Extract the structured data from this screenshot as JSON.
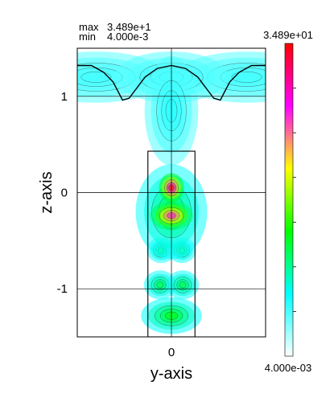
{
  "chart_data": {
    "type": "heatmap",
    "title": "",
    "stats": {
      "max_label": "max",
      "max_value": "3.489e+1",
      "min_label": "min",
      "min_value": "4.000e-3"
    },
    "xlabel": "y-axis",
    "ylabel": "z-axis",
    "xlim": [
      -1.0,
      1.0
    ],
    "ylim": [
      -1.5,
      1.5
    ],
    "x_ticks": [
      {
        "value": 0,
        "label": "0"
      }
    ],
    "y_ticks": [
      {
        "value": 1,
        "label": "1"
      },
      {
        "value": 0,
        "label": "0"
      },
      {
        "value": -1,
        "label": "-1"
      }
    ],
    "grid": true,
    "colorbar": {
      "max_label": "3.489e+01",
      "min_label": "4.000e-03",
      "min": 0.004,
      "max": 34.89,
      "colors": [
        "#ffffff",
        "#00ffff",
        "#00ff00",
        "#ffff00",
        "#ff00ff",
        "#ff0000"
      ]
    },
    "structure": {
      "pillar_y": [
        -0.25,
        0.25
      ],
      "pillar_z": [
        -1.5,
        0.43
      ]
    },
    "surface_profile": [
      [
        -1.0,
        1.32
      ],
      [
        -0.85,
        1.32
      ],
      [
        -0.72,
        1.25
      ],
      [
        -0.62,
        1.15
      ],
      [
        -0.55,
        1.02
      ],
      [
        -0.52,
        0.96
      ],
      [
        -0.45,
        0.98
      ],
      [
        -0.38,
        1.07
      ],
      [
        -0.28,
        1.2
      ],
      [
        -0.15,
        1.29
      ],
      [
        0.0,
        1.32
      ],
      [
        0.15,
        1.29
      ],
      [
        0.28,
        1.2
      ],
      [
        0.38,
        1.07
      ],
      [
        0.45,
        0.98
      ],
      [
        0.52,
        0.96
      ],
      [
        0.55,
        1.02
      ],
      [
        0.62,
        1.15
      ],
      [
        0.72,
        1.25
      ],
      [
        0.85,
        1.32
      ],
      [
        1.0,
        1.32
      ]
    ],
    "hotspots": [
      {
        "y": 0.0,
        "z": 0.05,
        "sy": 0.07,
        "sz": 0.08,
        "value": 34.89
      },
      {
        "y": 0.0,
        "z": -0.24,
        "sy": 0.12,
        "sz": 0.08,
        "value": 28
      },
      {
        "y": 0.0,
        "z": -0.2,
        "sy": 0.2,
        "sz": 0.26,
        "value": 9
      },
      {
        "y": -0.11,
        "z": -0.6,
        "sy": 0.08,
        "sz": 0.07,
        "value": 8
      },
      {
        "y": 0.11,
        "z": -0.6,
        "sy": 0.08,
        "sz": 0.07,
        "value": 8
      },
      {
        "y": -0.12,
        "z": -0.96,
        "sy": 0.09,
        "sz": 0.08,
        "value": 9
      },
      {
        "y": 0.12,
        "z": -0.96,
        "sy": 0.09,
        "sz": 0.08,
        "value": 9
      },
      {
        "y": 0.0,
        "z": -1.28,
        "sy": 0.17,
        "sz": 0.1,
        "value": 11
      },
      {
        "y": 0.0,
        "z": 0.85,
        "sy": 0.15,
        "sz": 0.3,
        "value": 2
      },
      {
        "y": 0.0,
        "z": 1.2,
        "sy": 0.32,
        "sz": 0.14,
        "value": 1.5
      },
      {
        "y": -0.8,
        "z": 1.2,
        "sy": 0.4,
        "sz": 0.14,
        "value": 1.2
      },
      {
        "y": 0.8,
        "z": 1.2,
        "sy": 0.4,
        "sz": 0.14,
        "value": 1.2
      }
    ]
  }
}
